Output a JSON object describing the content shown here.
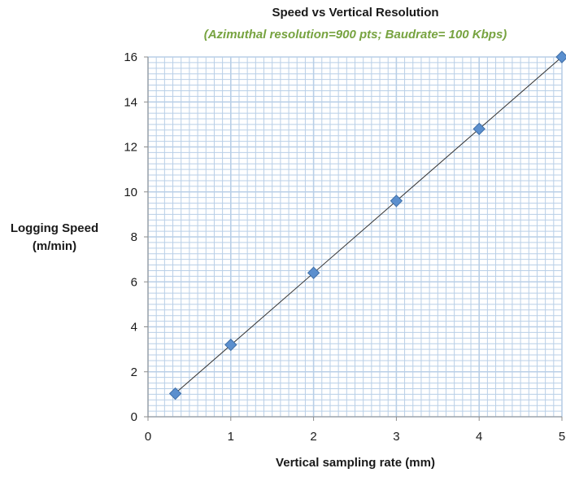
{
  "chart_data": {
    "type": "scatter",
    "title": "Speed vs Vertical Resolution",
    "subtitle": "(Azimuthal resolution=900 pts; Baudrate= 100 Kbps)",
    "xlabel": "Vertical sampling rate (mm)",
    "ylabel_line1": "Logging Speed",
    "ylabel_line2": "(m/min)",
    "xlim": [
      0,
      5
    ],
    "ylim": [
      0,
      16
    ],
    "xticks": [
      0,
      1,
      2,
      3,
      4,
      5
    ],
    "yticks": [
      0,
      2,
      4,
      6,
      8,
      10,
      12,
      14,
      16
    ],
    "grid": true,
    "trendline": true,
    "x": [
      0.33,
      1,
      2,
      3,
      4,
      5
    ],
    "y": [
      1.03,
      3.2,
      6.4,
      9.6,
      12.8,
      16
    ],
    "colors": {
      "marker": "#5b8fce",
      "marker_edge": "#3f6fa8",
      "grid": "#b9cfe7",
      "trendline": "#333333",
      "subtitle": "#77a340"
    }
  }
}
